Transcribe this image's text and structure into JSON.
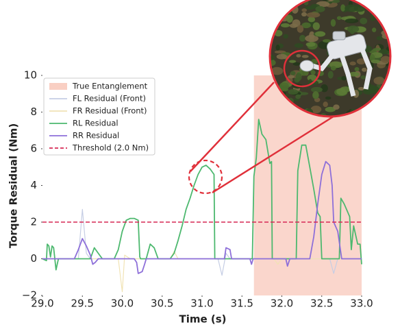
{
  "chart_data": {
    "type": "line",
    "xlabel": "Time (s)",
    "ylabel": "Torque Residual (Nm)",
    "xlim": [
      29.0,
      33.0
    ],
    "ylim": [
      -2,
      10
    ],
    "xticks": [
      {
        "value": 29,
        "label": "29.0"
      },
      {
        "value": 29.5,
        "label": "29.5"
      },
      {
        "value": 30,
        "label": "30.0"
      },
      {
        "value": 30.5,
        "label": "30.5"
      },
      {
        "value": 31,
        "label": "31.0"
      },
      {
        "value": 31.5,
        "label": "31.5"
      },
      {
        "value": 32,
        "label": "32.0"
      },
      {
        "value": 32.5,
        "label": "32.5"
      },
      {
        "value": 33,
        "label": "33.0"
      }
    ],
    "yticks": [
      {
        "value": -2,
        "label": "−2"
      },
      0,
      2,
      4,
      6,
      8,
      10
    ],
    "grid": false,
    "legend": "upper left",
    "shade": {
      "name": "True Entanglement",
      "color": "#f9cfc3",
      "x": [
        31.65,
        33.0
      ]
    },
    "series": [
      {
        "name": "FL Residual (Front)",
        "color": "#c5cde4",
        "x": [
          29.0,
          29.45,
          29.5,
          29.55,
          29.6,
          31.2,
          31.25,
          31.3,
          31.35,
          32.6,
          32.65,
          32.7,
          33.0
        ],
        "values": [
          0,
          0,
          2.7,
          0.3,
          0,
          0,
          -0.9,
          0.3,
          0,
          0,
          -0.8,
          0,
          0
        ]
      },
      {
        "name": "FR Residual (Front)",
        "color": "#f1e3b4",
        "x": [
          29.0,
          29.95,
          30.0,
          30.03,
          30.1,
          30.6,
          30.65,
          30.7,
          31.9,
          31.95,
          32.0,
          33.0
        ],
        "values": [
          0,
          0,
          -1.8,
          0.2,
          0,
          0,
          0.4,
          0,
          0,
          -0.3,
          0,
          0
        ]
      },
      {
        "name": "RL Residual",
        "color": "#4cb86e",
        "x": [
          29.0,
          29.05,
          29.06,
          29.08,
          29.1,
          29.12,
          29.14,
          29.17,
          29.2,
          29.22,
          29.24,
          29.3,
          29.6,
          29.65,
          29.7,
          29.75,
          29.8,
          29.9,
          29.95,
          30.0,
          30.05,
          30.1,
          30.15,
          30.2,
          30.22,
          30.23,
          30.3,
          30.35,
          30.4,
          30.45,
          30.6,
          30.65,
          30.7,
          30.75,
          30.8,
          30.85,
          30.9,
          30.95,
          31.0,
          31.05,
          31.1,
          31.15,
          31.16,
          31.2,
          31.63,
          31.65,
          31.68,
          31.71,
          31.75,
          31.8,
          31.85,
          31.87,
          31.88,
          32.18,
          32.2,
          32.25,
          32.3,
          32.35,
          32.4,
          32.45,
          32.48,
          32.5,
          32.72,
          32.74,
          32.78,
          32.82,
          32.85,
          32.87,
          32.9,
          32.95,
          32.98,
          33.0
        ],
        "values": [
          0,
          -0.1,
          0.8,
          0.7,
          0.1,
          0.7,
          0.6,
          -0.6,
          0,
          0,
          0,
          0,
          0,
          0.6,
          0.3,
          0,
          0,
          0,
          0.5,
          1.5,
          2.1,
          2.2,
          2.2,
          2.1,
          0.1,
          0,
          0,
          0.8,
          0.6,
          0,
          0,
          0.3,
          1.0,
          1.8,
          2.7,
          3.3,
          4.0,
          4.6,
          5.0,
          5.1,
          4.9,
          4.6,
          0,
          0,
          0,
          4.5,
          5.5,
          7.6,
          6.8,
          6.5,
          5.2,
          5.3,
          0,
          0,
          4.8,
          6.2,
          6.2,
          5.0,
          3.8,
          2.5,
          2.3,
          0,
          0,
          3.3,
          3.0,
          2.6,
          2.3,
          0.5,
          1.8,
          0.8,
          0.8,
          -0.3
        ]
      },
      {
        "name": "RR Residual",
        "color": "#8d6fd9",
        "x": [
          29.0,
          29.4,
          29.45,
          29.5,
          29.55,
          29.6,
          29.63,
          29.66,
          29.7,
          30.15,
          30.18,
          30.2,
          30.25,
          30.28,
          30.3,
          31.28,
          31.3,
          31.35,
          31.37,
          31.6,
          31.62,
          31.64,
          32.05,
          32.07,
          32.1,
          32.35,
          32.4,
          32.45,
          32.5,
          32.55,
          32.6,
          32.63,
          32.65,
          32.7,
          32.75,
          33.0
        ],
        "values": [
          0,
          0,
          0.5,
          1.1,
          0.7,
          0.2,
          -0.3,
          -0.2,
          0,
          0,
          -0.2,
          -0.8,
          -0.7,
          -0.3,
          0,
          0,
          0.6,
          0.5,
          0,
          0,
          -0.3,
          0,
          0,
          -0.4,
          0,
          0,
          1.2,
          3.0,
          4.6,
          5.3,
          5.1,
          4.0,
          2.0,
          1.5,
          0,
          0
        ]
      }
    ],
    "threshold": {
      "name": "Threshold (2.0 Nm)",
      "value": 2.0,
      "color": "#d62754"
    }
  }
}
